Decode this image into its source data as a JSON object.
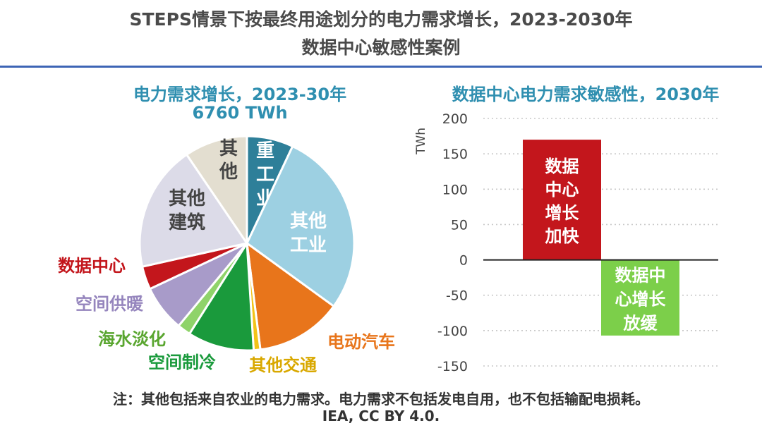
{
  "header": {
    "title_line1": "STEPS情景下按最终用途划分的电力需求增长，2023-2030年",
    "title_line2": "数据中心敏感性案例"
  },
  "footer": {
    "note": "注：其他包括来自农业的电力需求。电力需求不包括发电自用，也不包括输配电损耗。",
    "source": "IEA, CC BY 4.0."
  },
  "chart_data": [
    {
      "type": "pie",
      "title": "电力需求增长，2023-30年",
      "subtitle": "6760 TWh",
      "start_angle_deg": 0,
      "slices": [
        {
          "label": "重工业",
          "value": 7,
          "color": "#2e7f99",
          "label_color": "#ffffff"
        },
        {
          "label": "其他工业",
          "value": 28,
          "color": "#9dd0e2",
          "label_color": "#ffffff"
        },
        {
          "label": "电动汽车",
          "value": 13,
          "color": "#e8751b",
          "label_color": "#e8751b"
        },
        {
          "label": "其他交通",
          "value": 1,
          "color": "#f2c318",
          "label_color": "#d9a800"
        },
        {
          "label": "空间制冷",
          "value": 10,
          "color": "#1a9a3c",
          "label_color": "#1a9a3c"
        },
        {
          "label": "海水淡化",
          "value": 2,
          "color": "#8fd36a",
          "label_color": "#5aa630"
        },
        {
          "label": "空间供暖",
          "value": 7,
          "color": "#a89bc9",
          "label_color": "#9585bd"
        },
        {
          "label": "数据中心",
          "value": 3.5,
          "color": "#c3161c",
          "label_color": "#c3161c"
        },
        {
          "label": "其他建筑",
          "value": 19,
          "color": "#dcdbe8",
          "label_color": "#444444"
        },
        {
          "label": "其他",
          "value": 9.5,
          "color": "#e3ded0",
          "label_color": "#444444"
        }
      ]
    },
    {
      "type": "bar",
      "title": "数据中心电力需求敏感性，2030年",
      "ylabel": "TWh",
      "ylim": [
        -150,
        200
      ],
      "yticks": [
        200,
        150,
        100,
        50,
        0,
        -50,
        -100,
        -150
      ],
      "grid": "dotted",
      "categories": [
        "数据中心增长加快",
        "数据中心增长放缓"
      ],
      "values": [
        170,
        -107
      ],
      "colors": [
        "#c3161c",
        "#7ccf4a"
      ]
    }
  ]
}
